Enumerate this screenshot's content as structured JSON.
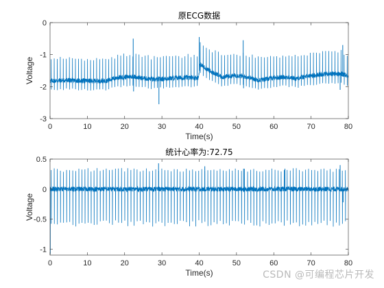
{
  "chart_data": [
    {
      "type": "line",
      "title": "原ECG数据",
      "xlabel": "Time(s)",
      "ylabel": "Voltage",
      "xlim": [
        0,
        80
      ],
      "ylim": [
        -3,
        0
      ],
      "xticks": [
        0,
        10,
        20,
        30,
        40,
        50,
        60,
        70,
        80
      ],
      "yticks": [
        -3,
        -2,
        -1,
        0
      ],
      "grid": false,
      "color": "#0072BD",
      "series": [
        {
          "baseline": [
            [
              0,
              -1.82
            ],
            [
              5,
              -1.8
            ],
            [
              10,
              -1.82
            ],
            [
              15,
              -1.82
            ],
            [
              18,
              -1.72
            ],
            [
              22,
              -1.68
            ],
            [
              25,
              -1.74
            ],
            [
              28,
              -1.78
            ],
            [
              32,
              -1.74
            ],
            [
              36,
              -1.72
            ],
            [
              39.8,
              -1.72
            ],
            [
              40.2,
              -1.3
            ],
            [
              43,
              -1.52
            ],
            [
              46,
              -1.7
            ],
            [
              50,
              -1.65
            ],
            [
              53,
              -1.7
            ],
            [
              56,
              -1.8
            ],
            [
              60,
              -1.72
            ],
            [
              63,
              -1.7
            ],
            [
              66,
              -1.74
            ],
            [
              70,
              -1.66
            ],
            [
              74,
              -1.6
            ],
            [
              78,
              -1.6
            ],
            [
              80,
              -1.68
            ]
          ],
          "r_peak_height": 0.68,
          "s_depth": 0.28,
          "beat_interval": 0.82,
          "outliers": [
            [
              22.3,
              -0.5
            ],
            [
              22.4,
              -2.15
            ],
            [
              29.2,
              -2.55
            ],
            [
              40,
              -0.45
            ],
            [
              51.8,
              -0.55
            ],
            [
              51.9,
              -2.05
            ],
            [
              77.8,
              -2.1
            ],
            [
              78.5,
              -0.7
            ]
          ]
        }
      ]
    },
    {
      "type": "line",
      "title": "统计心率为:72.75",
      "xlabel": "Time(s)",
      "ylabel": "Voltage",
      "xlim": [
        0,
        80
      ],
      "ylim": [
        -1.1,
        0.5
      ],
      "xticks": [
        0,
        10,
        20,
        30,
        40,
        50,
        60,
        70,
        80
      ],
      "yticks": [
        -1,
        -0.5,
        0,
        0.5
      ],
      "grid": false,
      "color": "#0072BD",
      "series": [
        {
          "baseline": [
            [
              0,
              0
            ],
            [
              80,
              0
            ]
          ],
          "r_peak_height": 0.32,
          "s_depth": 0.57,
          "beat_interval": 0.82,
          "outliers": [
            [
              0.05,
              -1.08
            ],
            [
              29.1,
              0.43
            ],
            [
              41.5,
              0.38
            ],
            [
              51.9,
              0.34
            ],
            [
              63,
              0.34
            ],
            [
              77.8,
              0.4
            ],
            [
              78.6,
              -0.22
            ]
          ]
        }
      ]
    }
  ],
  "watermark": "CSDN @可编程芯片开发"
}
